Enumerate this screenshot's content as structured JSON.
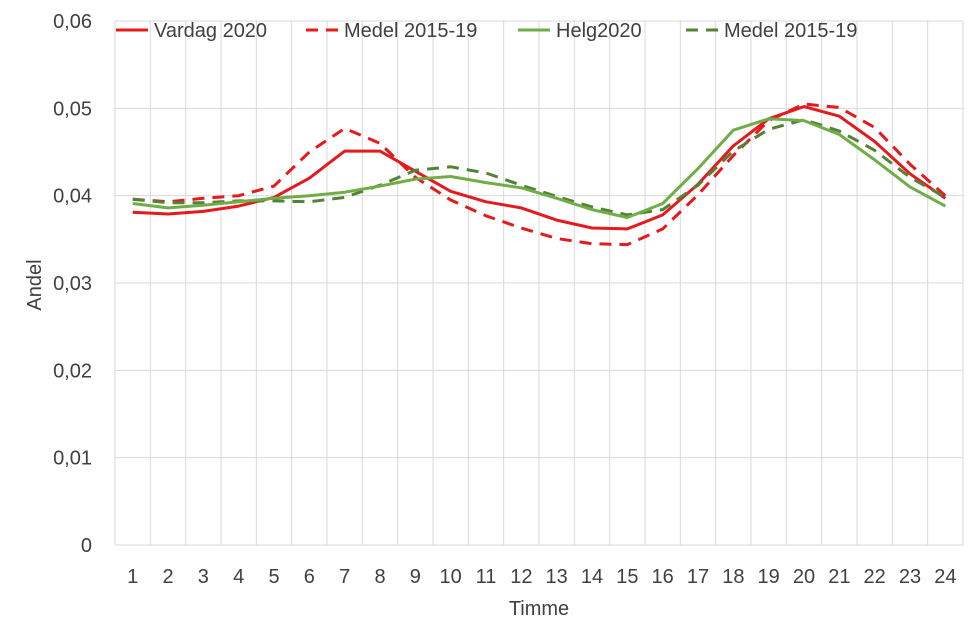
{
  "chart_data": {
    "type": "line",
    "title": "",
    "xlabel": "Timme",
    "ylabel": "Andel",
    "x": [
      1,
      2,
      3,
      4,
      5,
      6,
      7,
      8,
      9,
      10,
      11,
      12,
      13,
      14,
      15,
      16,
      17,
      18,
      19,
      20,
      21,
      22,
      23,
      24
    ],
    "ylim": [
      0,
      0.06
    ],
    "yticks": [
      "0",
      "0,01",
      "0,02",
      "0,03",
      "0,04",
      "0,05",
      "0,06"
    ],
    "grid": true,
    "legend_position": "top",
    "series": [
      {
        "name": "Vardag 2020",
        "color": "#e41a1c",
        "dash": "solid",
        "values": [
          0.0381,
          0.0379,
          0.0382,
          0.0388,
          0.0398,
          0.042,
          0.0451,
          0.0451,
          0.0428,
          0.0405,
          0.0393,
          0.0386,
          0.0372,
          0.0363,
          0.0362,
          0.0378,
          0.0413,
          0.0457,
          0.0488,
          0.0502,
          0.0491,
          0.0462,
          0.0425,
          0.0397
        ]
      },
      {
        "name": "Medel 2015-19",
        "color": "#e41a1c",
        "dash": "dashed",
        "values": [
          0.0396,
          0.0393,
          0.0397,
          0.04,
          0.0411,
          0.045,
          0.0477,
          0.046,
          0.0421,
          0.0395,
          0.0377,
          0.0363,
          0.0351,
          0.0345,
          0.0344,
          0.0362,
          0.0401,
          0.0446,
          0.0486,
          0.0505,
          0.0501,
          0.0478,
          0.0436,
          0.04
        ]
      },
      {
        "name": "Helg2020",
        "color": "#70ad47",
        "dash": "solid",
        "values": [
          0.0391,
          0.0386,
          0.0389,
          0.0393,
          0.0397,
          0.04,
          0.0404,
          0.0411,
          0.0419,
          0.0422,
          0.0415,
          0.0409,
          0.0397,
          0.0384,
          0.0375,
          0.0391,
          0.0431,
          0.0475,
          0.0488,
          0.0486,
          0.047,
          0.0441,
          0.041,
          0.0388
        ]
      },
      {
        "name": "Medel 2015-19",
        "color": "#548235",
        "dash": "dashed",
        "values": [
          0.0396,
          0.0392,
          0.0392,
          0.0394,
          0.0394,
          0.0393,
          0.0398,
          0.0412,
          0.0429,
          0.0433,
          0.0426,
          0.0412,
          0.0399,
          0.0387,
          0.0378,
          0.0384,
          0.0412,
          0.0451,
          0.0476,
          0.0487,
          0.0474,
          0.0452,
          0.0421,
          0.0398
        ]
      }
    ]
  }
}
